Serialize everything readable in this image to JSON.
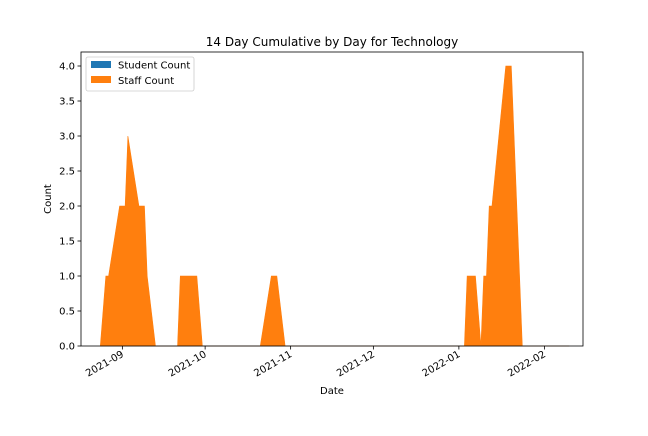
{
  "chart_data": {
    "type": "area",
    "title": "14 Day Cumulative by Day for Technology",
    "xlabel": "Date",
    "ylabel": "Count",
    "xlim": [
      "2021-08-17",
      "2022-02-15"
    ],
    "ylim": [
      0,
      4.2
    ],
    "yticks": [
      0.0,
      0.5,
      1.0,
      1.5,
      2.0,
      2.5,
      3.0,
      3.5,
      4.0
    ],
    "xticks": [
      "2021-09",
      "2021-10",
      "2021-11",
      "2021-12",
      "2022-01",
      "2022-02"
    ],
    "xtick_dates": [
      "2021-09-01",
      "2021-10-01",
      "2021-11-01",
      "2021-12-01",
      "2022-01-01",
      "2022-02-01"
    ],
    "grid": false,
    "legend_position": "top-left",
    "series": [
      {
        "name": "Student Count",
        "color": "#1f77b4",
        "points": [
          [
            "2021-08-24",
            0
          ],
          [
            "2022-02-10",
            0
          ]
        ]
      },
      {
        "name": "Staff Count",
        "color": "#ff7f0e",
        "points": [
          [
            "2021-08-24",
            0
          ],
          [
            "2021-08-26",
            1
          ],
          [
            "2021-08-27",
            1
          ],
          [
            "2021-08-31",
            2
          ],
          [
            "2021-09-02",
            2
          ],
          [
            "2021-09-03",
            3
          ],
          [
            "2021-09-07",
            2
          ],
          [
            "2021-09-09",
            2
          ],
          [
            "2021-09-10",
            1
          ],
          [
            "2021-09-13",
            0
          ],
          [
            "2021-09-21",
            0
          ],
          [
            "2021-09-22",
            1
          ],
          [
            "2021-09-28",
            1
          ],
          [
            "2021-09-30",
            0
          ],
          [
            "2021-10-21",
            0
          ],
          [
            "2021-10-25",
            1
          ],
          [
            "2021-10-27",
            1
          ],
          [
            "2021-10-30",
            0
          ],
          [
            "2022-01-03",
            0
          ],
          [
            "2022-01-04",
            1
          ],
          [
            "2022-01-07",
            1
          ],
          [
            "2022-01-09",
            0
          ],
          [
            "2022-01-10",
            1
          ],
          [
            "2022-01-11",
            1
          ],
          [
            "2022-01-12",
            2
          ],
          [
            "2022-01-13",
            2
          ],
          [
            "2022-01-18",
            4
          ],
          [
            "2022-01-20",
            4
          ],
          [
            "2022-01-24",
            0
          ],
          [
            "2022-02-10",
            0
          ]
        ]
      }
    ]
  }
}
